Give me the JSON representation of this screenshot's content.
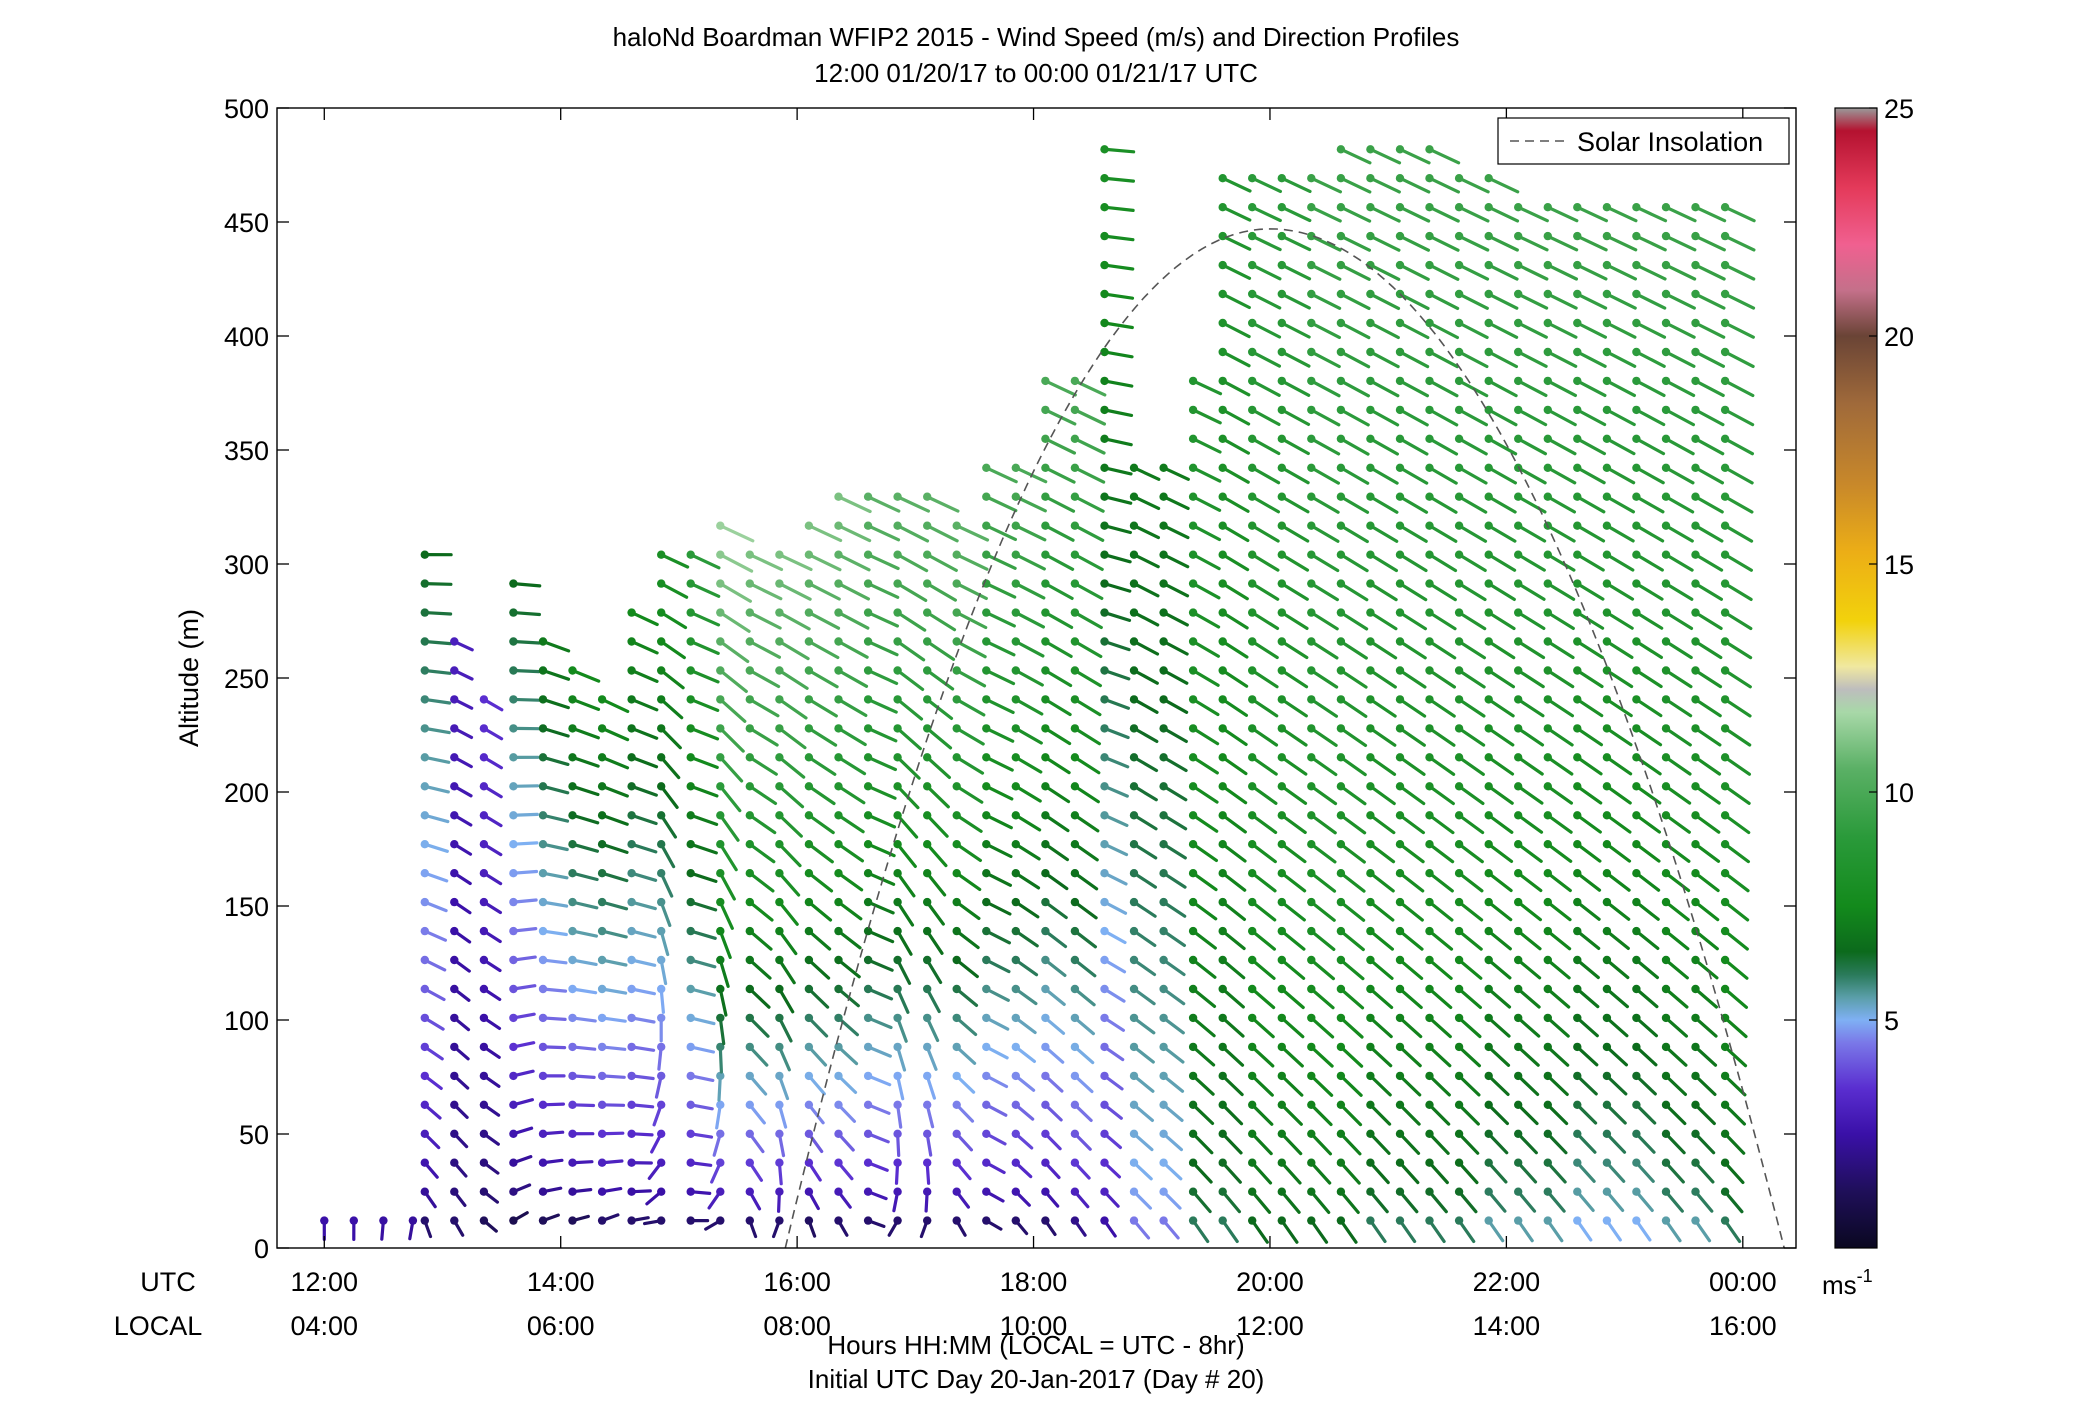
{
  "chart_data": {
    "type": "wind-barb-profile",
    "title": "haloNd Boardman WFIP2 2015 - Wind Speed (m/s) and Direction Profiles",
    "subtitle": "12:00 01/20/17 to 00:00 01/21/17  UTC",
    "ylabel": "Altitude (m)",
    "xlabel": "Hours HH:MM  (LOCAL = UTC - 8hr)",
    "xlabel2": "Initial UTC Day 20-Jan-2017 (Day # 20)",
    "row_label_utc": "UTC",
    "row_label_local": "LOCAL",
    "xlim_hours": [
      11.6,
      24.45
    ],
    "ylim": [
      0,
      500
    ],
    "y_ticks": [
      "0",
      "50",
      "100",
      "150",
      "200",
      "250",
      "300",
      "350",
      "400",
      "450",
      "500"
    ],
    "x_ticks_utc": [
      "12:00",
      "14:00",
      "16:00",
      "18:00",
      "20:00",
      "22:00",
      "00:00"
    ],
    "x_ticks_local": [
      "04:00",
      "06:00",
      "08:00",
      "10:00",
      "12:00",
      "14:00",
      "16:00"
    ],
    "legend": {
      "entry": "Solar Insolation",
      "placement": "top-right"
    },
    "colorbar": {
      "range": [
        0,
        25
      ],
      "ticks": [
        "5",
        "10",
        "15",
        "20",
        "25"
      ],
      "unit_label": "ms",
      "unit_exponent": "-1"
    },
    "solar_insolation_curve": {
      "peak_hour": 20.0,
      "peak_altitude_m": 447,
      "start_hour": 15.9,
      "end_hour": 24.35
    },
    "profiles": [
      {
        "hour": 12.0,
        "top_m": 12,
        "low_speed": 2.5,
        "high_speed": 2.5,
        "low_dir": 180,
        "high_dir": 185
      },
      {
        "hour": 12.25,
        "top_m": 12,
        "low_speed": 2.5,
        "high_speed": 2.5,
        "low_dir": 180,
        "high_dir": 180
      },
      {
        "hour": 12.5,
        "top_m": 12,
        "low_speed": 2.4,
        "high_speed": 2.4,
        "low_dir": 175,
        "high_dir": 175
      },
      {
        "hour": 12.75,
        "top_m": 12,
        "low_speed": 2.3,
        "high_speed": 2.3,
        "low_dir": 170,
        "high_dir": 170
      },
      {
        "hour": 12.85,
        "top_m": 305,
        "low_speed": 1.5,
        "high_speed": 6.5,
        "low_dir": 200,
        "high_dir": 270
      },
      {
        "hour": 13.1,
        "top_m": 270,
        "low_speed": 1.5,
        "high_speed": 3.0,
        "low_dir": 210,
        "high_dir": 245
      },
      {
        "hour": 13.35,
        "top_m": 245,
        "low_speed": 1.2,
        "high_speed": 3.5,
        "low_dir": 230,
        "high_dir": 240
      },
      {
        "hour": 13.6,
        "top_m": 295,
        "low_speed": 1.0,
        "high_speed": 6.5,
        "low_dir": 300,
        "high_dir": 265
      },
      {
        "hour": 13.85,
        "top_m": 270,
        "low_speed": 1.2,
        "high_speed": 7.0,
        "low_dir": 290,
        "high_dir": 250
      },
      {
        "hour": 14.1,
        "top_m": 258,
        "low_speed": 1.2,
        "high_speed": 7.5,
        "low_dir": 285,
        "high_dir": 248
      },
      {
        "hour": 14.35,
        "top_m": 250,
        "low_speed": 1.5,
        "high_speed": 7.5,
        "low_dir": 290,
        "high_dir": 245
      },
      {
        "hour": 14.6,
        "top_m": 290,
        "low_speed": 1.5,
        "high_speed": 7.5,
        "low_dir": 280,
        "high_dir": 245
      },
      {
        "hour": 14.85,
        "top_m": 305,
        "low_speed": 1.5,
        "high_speed": 8.0,
        "low_dir": 100,
        "high_dir": 245
      },
      {
        "hour": 15.1,
        "top_m": 310,
        "low_speed": 1.5,
        "high_speed": 9.0,
        "low_dir": 270,
        "high_dir": 245
      },
      {
        "hour": 15.35,
        "top_m": 330,
        "low_speed": 1.5,
        "high_speed": 11.5,
        "low_dir": 120,
        "high_dir": 245
      },
      {
        "hour": 15.6,
        "top_m": 310,
        "low_speed": 1.5,
        "high_speed": 11.0,
        "low_dir": 200,
        "high_dir": 245
      },
      {
        "hour": 15.85,
        "top_m": 310,
        "low_speed": 1.5,
        "high_speed": 11.0,
        "low_dir": 160,
        "high_dir": 245
      },
      {
        "hour": 16.1,
        "top_m": 325,
        "low_speed": 1.3,
        "high_speed": 11.0,
        "low_dir": 200,
        "high_dir": 245
      },
      {
        "hour": 16.35,
        "top_m": 340,
        "low_speed": 1.5,
        "high_speed": 11.0,
        "low_dir": 210,
        "high_dir": 245
      },
      {
        "hour": 16.6,
        "top_m": 340,
        "low_speed": 1.5,
        "high_speed": 10.5,
        "low_dir": 250,
        "high_dir": 245
      },
      {
        "hour": 16.85,
        "top_m": 340,
        "low_speed": 1.5,
        "high_speed": 10.5,
        "low_dir": 150,
        "high_dir": 245
      },
      {
        "hour": 17.1,
        "top_m": 340,
        "low_speed": 1.5,
        "high_speed": 10.5,
        "low_dir": 160,
        "high_dir": 245
      },
      {
        "hour": 17.35,
        "top_m": 330,
        "low_speed": 1.5,
        "high_speed": 10.5,
        "low_dir": 210,
        "high_dir": 245
      },
      {
        "hour": 17.6,
        "top_m": 350,
        "low_speed": 1.5,
        "high_speed": 10.0,
        "low_dir": 240,
        "high_dir": 245
      },
      {
        "hour": 17.85,
        "top_m": 355,
        "low_speed": 1.5,
        "high_speed": 10.0,
        "low_dir": 220,
        "high_dir": 245
      },
      {
        "hour": 18.1,
        "top_m": 385,
        "low_speed": 1.5,
        "high_speed": 10.0,
        "low_dir": 215,
        "high_dir": 245
      },
      {
        "hour": 18.35,
        "top_m": 385,
        "low_speed": 2.0,
        "high_speed": 10.0,
        "low_dir": 215,
        "high_dir": 245
      },
      {
        "hour": 18.6,
        "top_m": 490,
        "low_speed": 2.5,
        "high_speed": 8.0,
        "low_dir": 215,
        "high_dir": 265
      },
      {
        "hour": 18.85,
        "top_m": 350,
        "low_speed": 4.5,
        "high_speed": 7.0,
        "low_dir": 220,
        "high_dir": 245
      },
      {
        "hour": 19.1,
        "top_m": 350,
        "low_speed": 4.5,
        "high_speed": 7.0,
        "low_dir": 220,
        "high_dir": 245
      },
      {
        "hour": 19.35,
        "top_m": 390,
        "low_speed": 6.0,
        "high_speed": 8.5,
        "low_dir": 215,
        "high_dir": 245
      },
      {
        "hour": 19.6,
        "top_m": 475,
        "low_speed": 6.0,
        "high_speed": 8.5,
        "low_dir": 215,
        "high_dir": 245
      },
      {
        "hour": 19.85,
        "top_m": 475,
        "low_speed": 6.5,
        "high_speed": 9.0,
        "low_dir": 215,
        "high_dir": 245
      },
      {
        "hour": 20.1,
        "top_m": 475,
        "low_speed": 6.5,
        "high_speed": 9.0,
        "low_dir": 215,
        "high_dir": 245
      },
      {
        "hour": 20.35,
        "top_m": 475,
        "low_speed": 6.5,
        "high_speed": 9.5,
        "low_dir": 215,
        "high_dir": 245
      },
      {
        "hour": 20.6,
        "top_m": 490,
        "low_speed": 6.5,
        "high_speed": 9.5,
        "low_dir": 215,
        "high_dir": 245
      },
      {
        "hour": 20.85,
        "top_m": 490,
        "low_speed": 6.0,
        "high_speed": 9.5,
        "low_dir": 215,
        "high_dir": 245
      },
      {
        "hour": 21.1,
        "top_m": 490,
        "low_speed": 6.0,
        "high_speed": 9.5,
        "low_dir": 215,
        "high_dir": 245
      },
      {
        "hour": 21.35,
        "top_m": 490,
        "low_speed": 6.0,
        "high_speed": 9.5,
        "low_dir": 215,
        "high_dir": 245
      },
      {
        "hour": 21.6,
        "top_m": 475,
        "low_speed": 6.0,
        "high_speed": 9.5,
        "low_dir": 215,
        "high_dir": 245
      },
      {
        "hour": 21.85,
        "top_m": 475,
        "low_speed": 5.5,
        "high_speed": 9.5,
        "low_dir": 215,
        "high_dir": 245
      },
      {
        "hour": 22.1,
        "top_m": 465,
        "low_speed": 5.5,
        "high_speed": 9.5,
        "low_dir": 215,
        "high_dir": 245
      },
      {
        "hour": 22.35,
        "top_m": 465,
        "low_speed": 5.5,
        "high_speed": 9.5,
        "low_dir": 215,
        "high_dir": 245
      },
      {
        "hour": 22.6,
        "top_m": 465,
        "low_speed": 5.0,
        "high_speed": 9.5,
        "low_dir": 215,
        "high_dir": 245
      },
      {
        "hour": 22.85,
        "top_m": 465,
        "low_speed": 5.0,
        "high_speed": 9.5,
        "low_dir": 215,
        "high_dir": 245
      },
      {
        "hour": 23.1,
        "top_m": 465,
        "low_speed": 5.0,
        "high_speed": 9.5,
        "low_dir": 215,
        "high_dir": 245
      },
      {
        "hour": 23.35,
        "top_m": 465,
        "low_speed": 5.5,
        "high_speed": 9.5,
        "low_dir": 215,
        "high_dir": 245
      },
      {
        "hour": 23.6,
        "top_m": 465,
        "low_speed": 5.5,
        "high_speed": 9.5,
        "low_dir": 215,
        "high_dir": 245
      },
      {
        "hour": 23.85,
        "top_m": 465,
        "low_speed": 6.0,
        "high_speed": 9.5,
        "low_dir": 215,
        "high_dir": 245
      }
    ]
  }
}
